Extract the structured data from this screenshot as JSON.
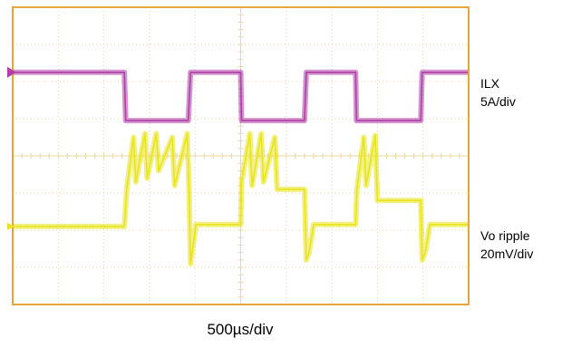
{
  "colors": {
    "frame": "#e6a63a",
    "grid": "#edd5a3",
    "ilx": "#b03fa8",
    "vo": "#e8e41e"
  },
  "labels": {
    "ilx_name": "ILX",
    "ilx_scale": "5A/div",
    "vo_name": "Vo ripple",
    "vo_scale": "20mV/div",
    "time_scale": "500µs/div"
  },
  "chart_data": {
    "type": "line",
    "title": "",
    "xlabel": "500µs/div",
    "ylabel": "",
    "grid": true,
    "x_unit": "div",
    "xlim": [
      0,
      10
    ],
    "ylim": [
      -4,
      4
    ],
    "divisions": {
      "x": 10,
      "y": 8
    },
    "series": [
      {
        "name": "ILX",
        "scale": "5A/div",
        "color": "#b03fa8",
        "x": [
          0,
          2.45,
          2.48,
          3.85,
          3.9,
          5.0,
          5.02,
          6.4,
          6.44,
          7.52,
          7.54,
          8.95,
          8.98,
          10
        ],
        "y": [
          2.25,
          2.25,
          0.95,
          0.95,
          2.25,
          2.25,
          0.95,
          0.95,
          2.25,
          2.25,
          0.95,
          0.95,
          2.25,
          2.25
        ]
      },
      {
        "name": "Vo ripple",
        "scale": "20mV/div",
        "color": "#e8e41e",
        "x": [
          0,
          2.45,
          2.5,
          2.65,
          2.7,
          2.9,
          2.95,
          3.15,
          3.2,
          3.5,
          3.55,
          3.83,
          3.87,
          3.9,
          4.02,
          5.0,
          5.02,
          5.2,
          5.25,
          5.45,
          5.5,
          5.75,
          5.8,
          6.4,
          6.44,
          6.5,
          6.6,
          7.52,
          7.55,
          7.7,
          7.75,
          7.95,
          8.0,
          8.95,
          8.98,
          9.05,
          9.15,
          10
        ],
        "y": [
          -1.9,
          -1.9,
          -0.9,
          0.5,
          -0.7,
          0.6,
          -0.6,
          0.6,
          -0.4,
          0.5,
          -0.8,
          0.6,
          -1.0,
          -2.9,
          -1.85,
          -1.85,
          -0.7,
          0.6,
          -0.8,
          0.6,
          -0.7,
          0.5,
          -0.9,
          -0.9,
          -2.8,
          -2.6,
          -1.85,
          -1.85,
          -0.9,
          0.5,
          -0.8,
          0.55,
          -1.2,
          -1.2,
          -2.8,
          -2.6,
          -1.85,
          -1.85
        ]
      }
    ]
  }
}
